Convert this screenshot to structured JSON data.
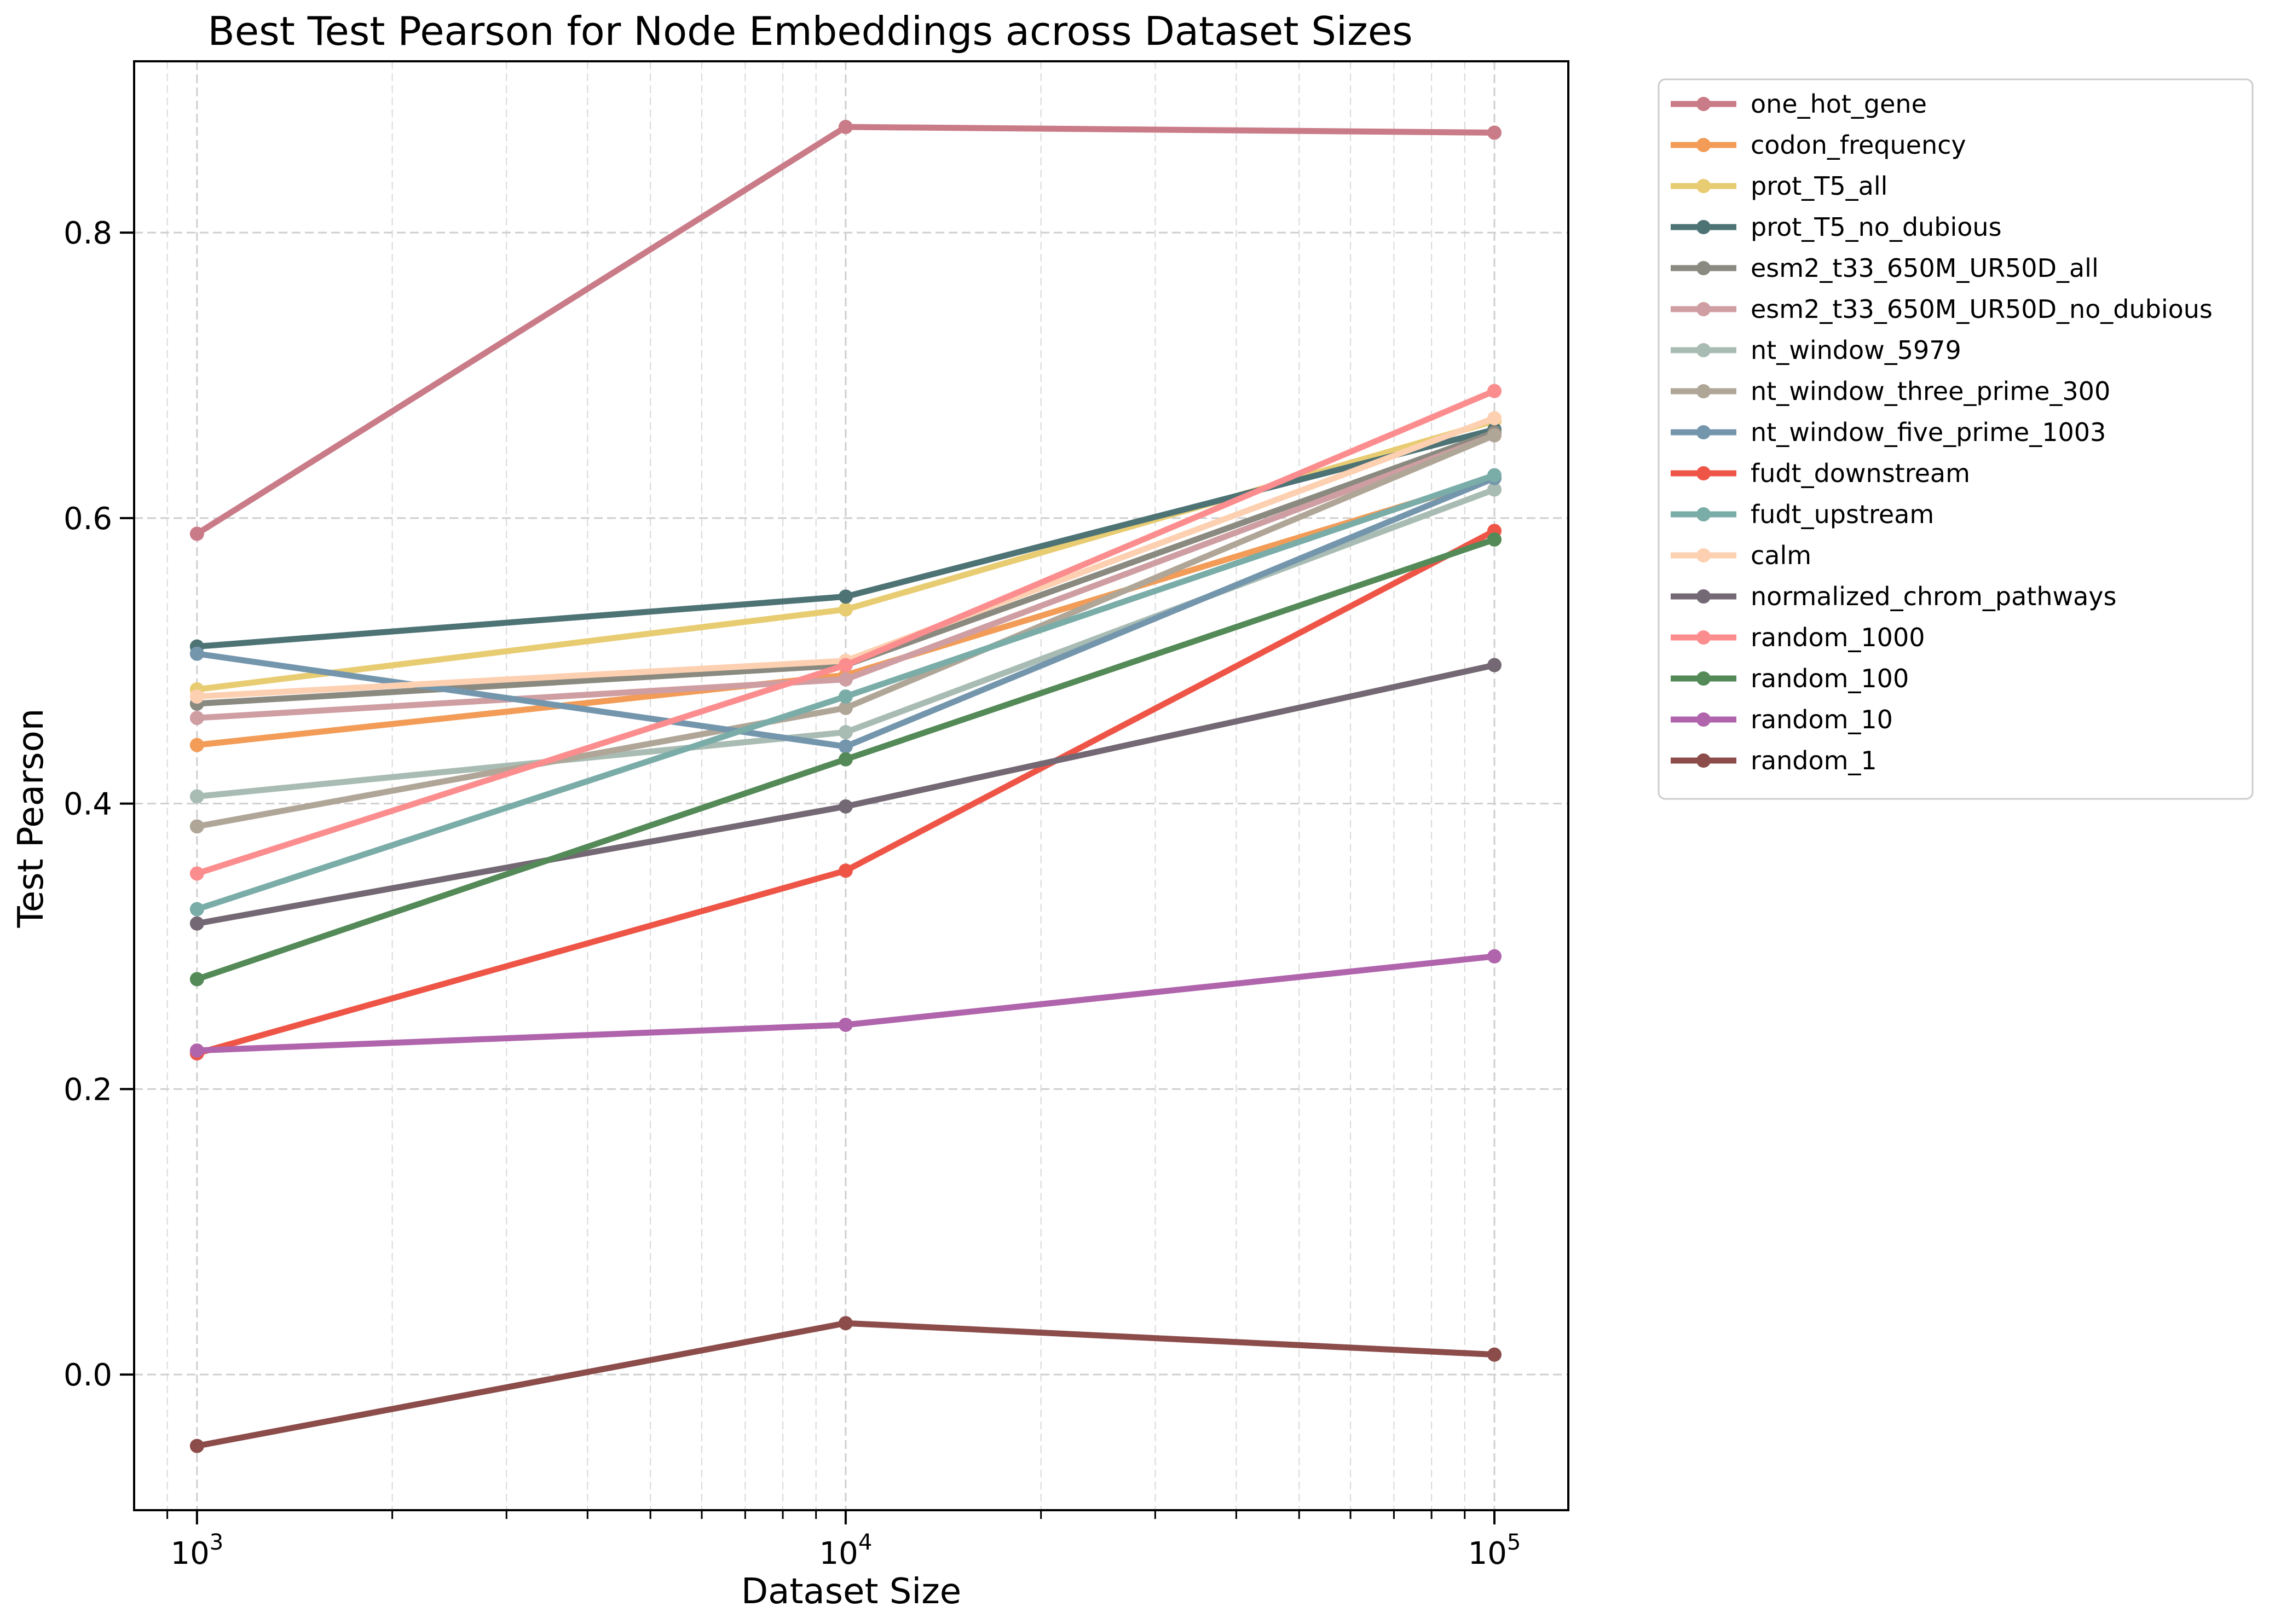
{
  "chart_data": {
    "type": "line",
    "title": "Best Test Pearson for Node Embeddings across Dataset Sizes",
    "xlabel": "Dataset Size",
    "ylabel": "Test Pearson",
    "x_scale": "log",
    "x": [
      1000,
      10000,
      100000
    ],
    "xlim": [
      800,
      130000
    ],
    "ylim": [
      -0.095,
      0.92
    ],
    "x_ticks": [
      {
        "value": 1000,
        "base": "10",
        "exp": "3"
      },
      {
        "value": 10000,
        "base": "10",
        "exp": "4"
      },
      {
        "value": 100000,
        "base": "10",
        "exp": "5"
      }
    ],
    "y_ticks": [
      {
        "value": 0.0,
        "label": "0.0"
      },
      {
        "value": 0.2,
        "label": "0.2"
      },
      {
        "value": 0.4,
        "label": "0.4"
      },
      {
        "value": 0.6,
        "label": "0.6"
      },
      {
        "value": 0.8,
        "label": "0.8"
      }
    ],
    "grid": true,
    "legend_position": "outside right, top",
    "series": [
      {
        "name": "one_hot_gene",
        "color": "#c97b87",
        "values": [
          0.589,
          0.874,
          0.87
        ]
      },
      {
        "name": "codon_frequency",
        "color": "#f29c57",
        "values": [
          0.441,
          0.49,
          0.628
        ]
      },
      {
        "name": "prot_T5_all",
        "color": "#e8cc72",
        "values": [
          0.48,
          0.536,
          0.668
        ]
      },
      {
        "name": "prot_T5_no_dubious",
        "color": "#4e7375",
        "values": [
          0.51,
          0.545,
          0.662
        ]
      },
      {
        "name": "esm2_t33_650M_UR50D_all",
        "color": "#8a8a80",
        "values": [
          0.47,
          0.497,
          0.66
        ]
      },
      {
        "name": "esm2_t33_650M_UR50D_no_dubious",
        "color": "#cf9ea2",
        "values": [
          0.46,
          0.487,
          0.658
        ]
      },
      {
        "name": "nt_window_5979",
        "color": "#a9bcb3",
        "values": [
          0.405,
          0.45,
          0.62
        ]
      },
      {
        "name": "nt_window_three_prime_300",
        "color": "#b0a698",
        "values": [
          0.384,
          0.467,
          0.658
        ]
      },
      {
        "name": "nt_window_five_prime_1003",
        "color": "#7496ad",
        "values": [
          0.505,
          0.44,
          0.628
        ]
      },
      {
        "name": "fudt_downstream",
        "color": "#ee5547",
        "values": [
          0.225,
          0.353,
          0.591
        ]
      },
      {
        "name": "fudt_upstream",
        "color": "#7aaca8",
        "values": [
          0.326,
          0.475,
          0.63
        ]
      },
      {
        "name": "calm",
        "color": "#fdd0b1",
        "values": [
          0.475,
          0.5,
          0.67
        ]
      },
      {
        "name": "normalized_chrom_pathways",
        "color": "#736873",
        "values": [
          0.316,
          0.398,
          0.497
        ]
      },
      {
        "name": "random_1000",
        "color": "#fc8d8e",
        "values": [
          0.351,
          0.497,
          0.689
        ]
      },
      {
        "name": "random_100",
        "color": "#548a58",
        "values": [
          0.277,
          0.431,
          0.585
        ]
      },
      {
        "name": "random_10",
        "color": "#b064ac",
        "values": [
          0.227,
          0.245,
          0.293
        ]
      },
      {
        "name": "random_1",
        "color": "#8b4c4a",
        "values": [
          -0.05,
          0.036,
          0.014
        ]
      }
    ]
  }
}
